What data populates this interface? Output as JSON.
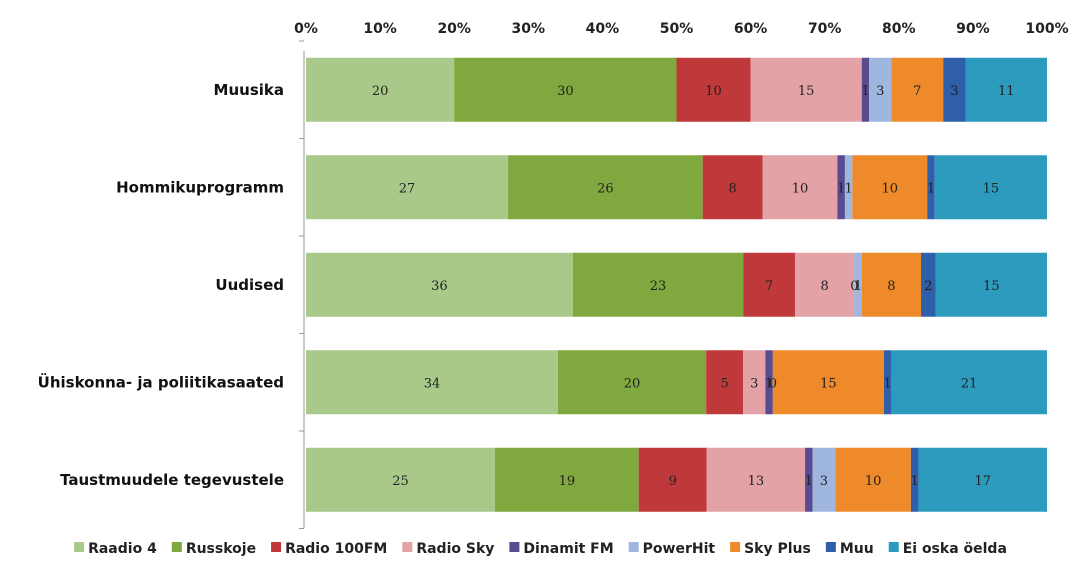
{
  "chart_data": {
    "type": "bar",
    "orientation": "horizontal",
    "stacked": "percent",
    "categories": [
      "Muusika",
      "Hommikuprogramm",
      "Uudised",
      "Ühiskonna- ja poliitikasaated",
      "Taustmuudele tegevustele"
    ],
    "xlim": [
      0,
      100
    ],
    "ticks": [
      "0%",
      "10%",
      "20%",
      "30%",
      "40%",
      "50%",
      "60%",
      "70%",
      "80%",
      "90%",
      "100%"
    ],
    "legend_position": "bottom",
    "series": [
      {
        "name": "Raadio 4",
        "color": "#a9c98a",
        "values": [
          20,
          27,
          36,
          34,
          25
        ]
      },
      {
        "name": "Russkoje",
        "color": "#7fa83e",
        "values": [
          30,
          26,
          23,
          20,
          19
        ]
      },
      {
        "name": "Radio 100FM",
        "color": "#c0393a",
        "values": [
          10,
          8,
          7,
          5,
          9
        ]
      },
      {
        "name": "Radio Sky",
        "color": "#e2a2a6",
        "values": [
          15,
          10,
          8,
          3,
          13
        ]
      },
      {
        "name": "Dinamit FM",
        "color": "#5a4a90",
        "values": [
          1,
          1,
          0,
          1,
          1
        ]
      },
      {
        "name": "PowerHit",
        "color": "#9fb6de",
        "values": [
          3,
          1,
          1,
          0,
          3
        ]
      },
      {
        "name": "Sky Plus",
        "color": "#ee8a2a",
        "values": [
          7,
          10,
          8,
          15,
          10
        ]
      },
      {
        "name": "Muu",
        "color": "#2e5fa8",
        "values": [
          3,
          1,
          2,
          1,
          1
        ]
      },
      {
        "name": "Ei oska öelda",
        "color": "#2d9bbd",
        "values": [
          11,
          15,
          15,
          21,
          17
        ]
      }
    ]
  }
}
